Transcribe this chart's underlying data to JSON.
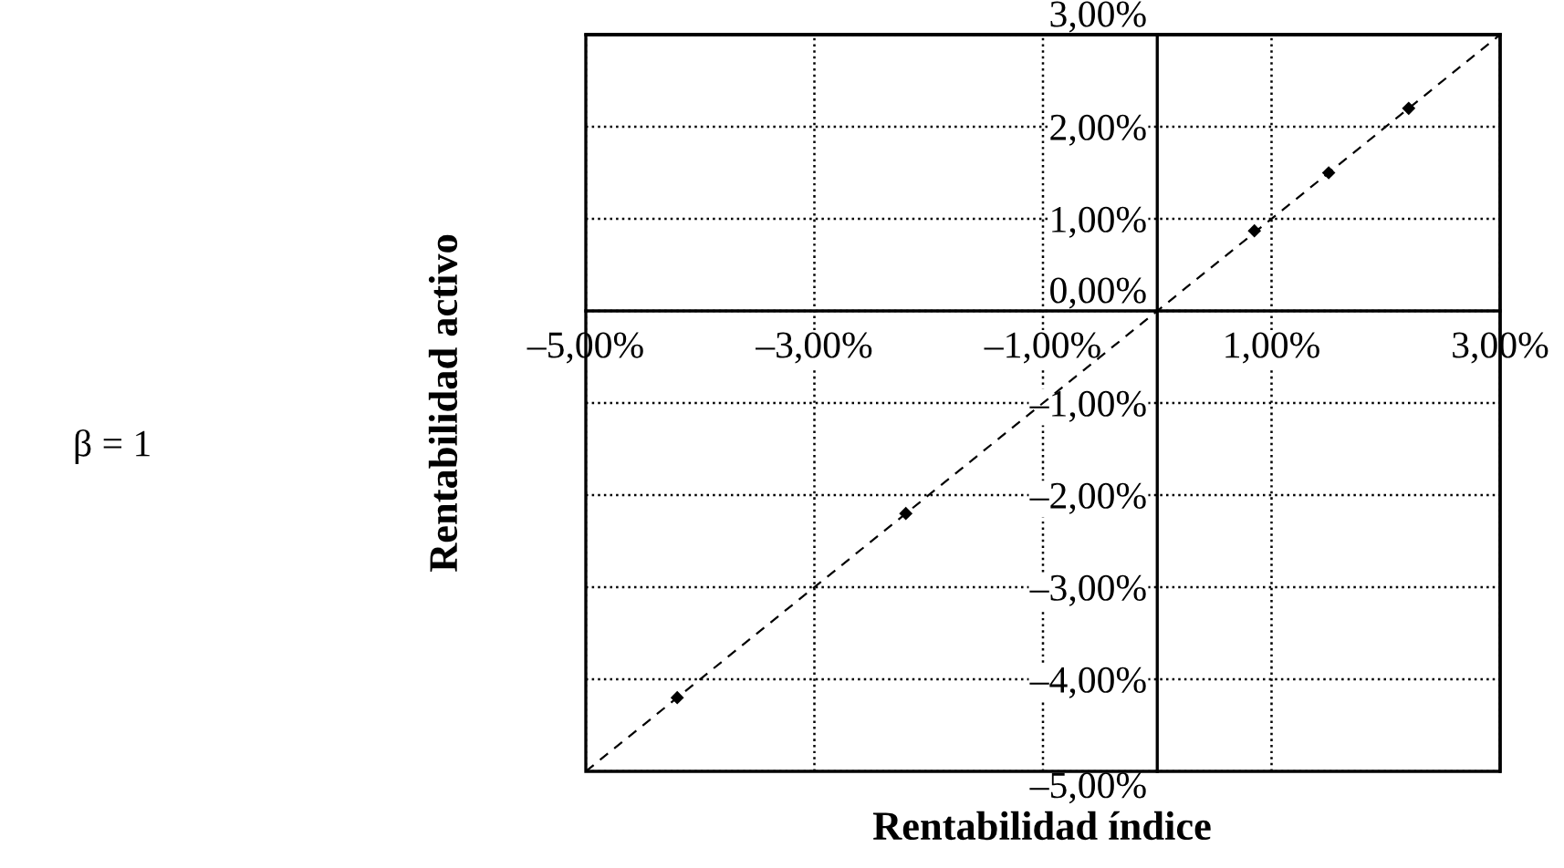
{
  "chart_data": {
    "type": "scatter",
    "xlabel": "Rentabilidad índice",
    "ylabel": "Rentabilidad activo",
    "annotations": [
      "β = 1"
    ],
    "series": [
      {
        "color": "#000000",
        "marker": "diamond",
        "x": [
          -4.2,
          -2.2,
          0.85,
          1.5,
          2.2
        ],
        "values": [
          -4.2,
          -2.2,
          0.87,
          1.5,
          2.2
        ]
      },
      {
        "type": "line",
        "color": "#000000",
        "line_style": "dashed",
        "marker": "none",
        "x": [
          -5,
          3
        ],
        "values": [
          -5,
          3
        ]
      }
    ],
    "xlim": [
      -5,
      3
    ],
    "ylim": [
      -5,
      3
    ],
    "xticks": [
      {
        "value": -5,
        "label": "–5,00%"
      },
      {
        "value": -3,
        "label": "–3,00%"
      },
      {
        "value": -1,
        "label": "–1,00%"
      },
      {
        "value": 1,
        "label": "1,00%"
      },
      {
        "value": 3,
        "label": "3,00%"
      }
    ],
    "yticks": [
      {
        "value": -5,
        "label": "–5,00%"
      },
      {
        "value": -4,
        "label": "–4,00%"
      },
      {
        "value": -3,
        "label": "–3,00%"
      },
      {
        "value": -2,
        "label": "–2,00%"
      },
      {
        "value": -1,
        "label": "–1,00%"
      },
      {
        "value": 0,
        "label": "0,00%"
      },
      {
        "value": 1,
        "label": "1,00%"
      },
      {
        "value": 2,
        "label": "2,00%"
      },
      {
        "value": 3,
        "label": "3,00%"
      }
    ],
    "grid": true
  }
}
